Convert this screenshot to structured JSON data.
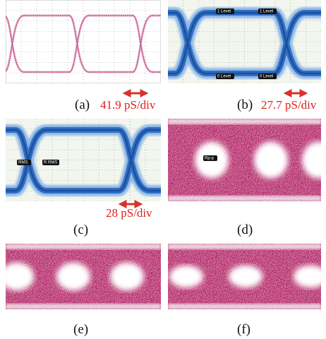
{
  "panels": [
    {
      "label": "(a)",
      "scale": "41.9 pS/div"
    },
    {
      "label": "(b)",
      "scale": "27.7 pS/div",
      "markers": [
        "1 Level",
        "1 Level",
        "0 Level",
        "0 Level"
      ]
    },
    {
      "label": "(c)",
      "scale": "28 pS/div",
      "markers": [
        "RMS",
        "R RMS"
      ]
    },
    {
      "label": "(d)",
      "markers": [
        "Rp-p"
      ]
    },
    {
      "label": "(e)"
    },
    {
      "label": "(f)"
    }
  ]
}
